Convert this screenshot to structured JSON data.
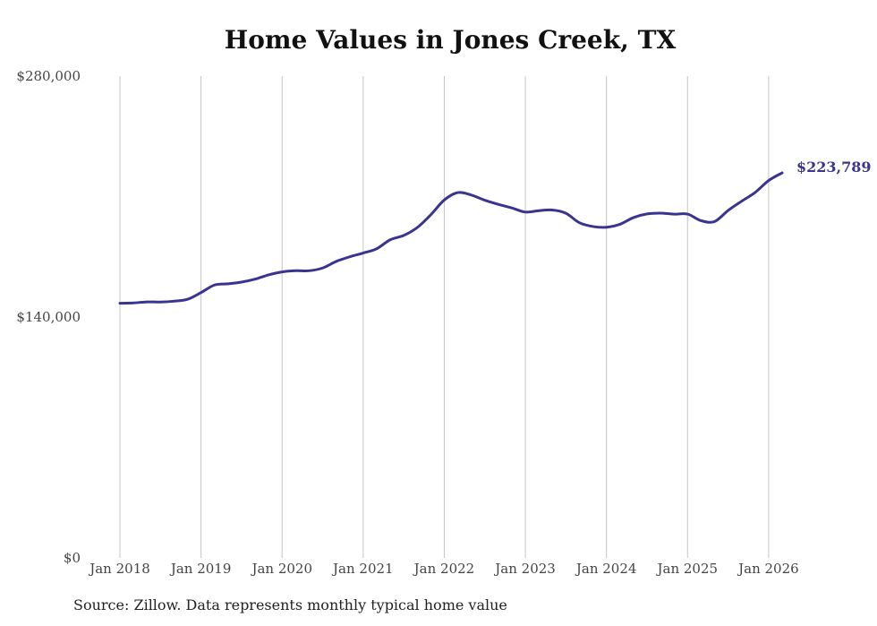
{
  "chart_data": {
    "type": "line",
    "title": "Home Values in Jones Creek, TX",
    "source": "Source: Zillow. Data represents monthly typical home value",
    "xlabel": "",
    "ylabel": "",
    "ylim": [
      0,
      280000
    ],
    "y_ticks": [
      0,
      140000,
      280000
    ],
    "y_tick_labels": [
      "$0",
      "$140,000",
      "$280,000"
    ],
    "x_range": [
      2018.0,
      2026.1667
    ],
    "x_ticks": [
      2018,
      2019,
      2020,
      2021,
      2022,
      2023,
      2024,
      2025,
      2026
    ],
    "x_tick_labels": [
      "Jan 2018",
      "Jan 2019",
      "Jan 2020",
      "Jan 2021",
      "Jan 2022",
      "Jan 2023",
      "Jan 2024",
      "Jan 2025",
      "Jan 2026"
    ],
    "grid": "vertical",
    "line_color": "#3a3490",
    "end_label": "$223,789",
    "series": [
      {
        "name": "Typical home value",
        "x": [
          2018.0,
          2018.1667,
          2018.3333,
          2018.5,
          2018.6667,
          2018.8333,
          2019.0,
          2019.1667,
          2019.3333,
          2019.5,
          2019.6667,
          2019.8333,
          2020.0,
          2020.1667,
          2020.3333,
          2020.5,
          2020.6667,
          2020.8333,
          2021.0,
          2021.1667,
          2021.3333,
          2021.5,
          2021.6667,
          2021.8333,
          2022.0,
          2022.1667,
          2022.3333,
          2022.5,
          2022.6667,
          2022.8333,
          2023.0,
          2023.1667,
          2023.3333,
          2023.5,
          2023.6667,
          2023.8333,
          2024.0,
          2024.1667,
          2024.3333,
          2024.5,
          2024.6667,
          2024.8333,
          2025.0,
          2025.1667,
          2025.3333,
          2025.5,
          2025.6667,
          2025.8333,
          2026.0,
          2026.1667
        ],
        "values": [
          148000,
          148200,
          148800,
          148700,
          149200,
          150300,
          154200,
          158600,
          159300,
          160300,
          162000,
          164500,
          166200,
          166900,
          166900,
          168500,
          172300,
          175000,
          177200,
          179700,
          184900,
          187400,
          192000,
          199400,
          208000,
          212300,
          210900,
          207900,
          205500,
          203400,
          201000,
          201800,
          202200,
          200300,
          194800,
          192600,
          192200,
          193900,
          197800,
          199900,
          200400,
          199800,
          199800,
          196000,
          195500,
          201900,
          207300,
          212400,
          219300,
          223789
        ]
      }
    ]
  }
}
